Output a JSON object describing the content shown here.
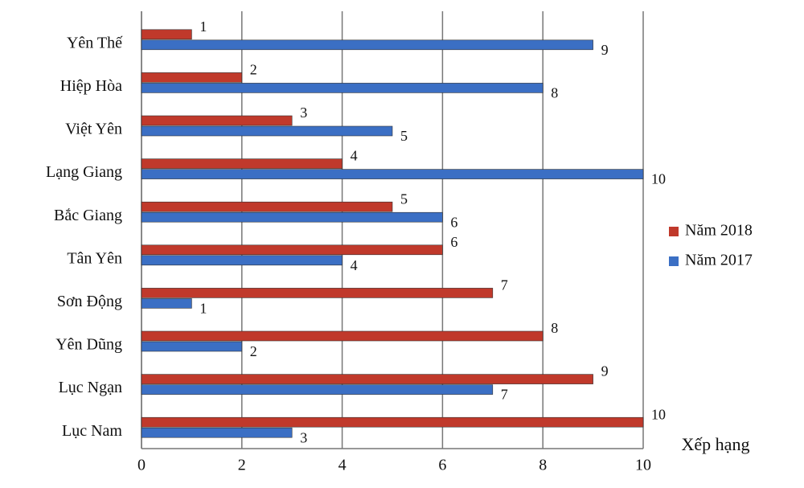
{
  "chart_data": {
    "type": "bar",
    "orientation": "horizontal",
    "categories": [
      "Yên Thế",
      "Hiệp Hòa",
      "Việt Yên",
      "Lạng Giang",
      "Bắc Giang",
      "Tân Yên",
      "Sơn Động",
      "Yên Dũng",
      "Lục Ngạn",
      "Lục Nam"
    ],
    "series": [
      {
        "name": "Năm 2018",
        "color": "#c0392b",
        "values": [
          1,
          2,
          3,
          4,
          5,
          6,
          7,
          8,
          9,
          10
        ]
      },
      {
        "name": "Năm 2017",
        "color": "#3b6fc4",
        "values": [
          9,
          8,
          5,
          10,
          6,
          4,
          1,
          2,
          7,
          3
        ]
      }
    ],
    "x_label": "Xếp hạng",
    "xlim": [
      0,
      10
    ],
    "xticks": [
      0,
      2,
      4,
      6,
      8,
      10
    ],
    "grid": true,
    "legend": "right"
  }
}
